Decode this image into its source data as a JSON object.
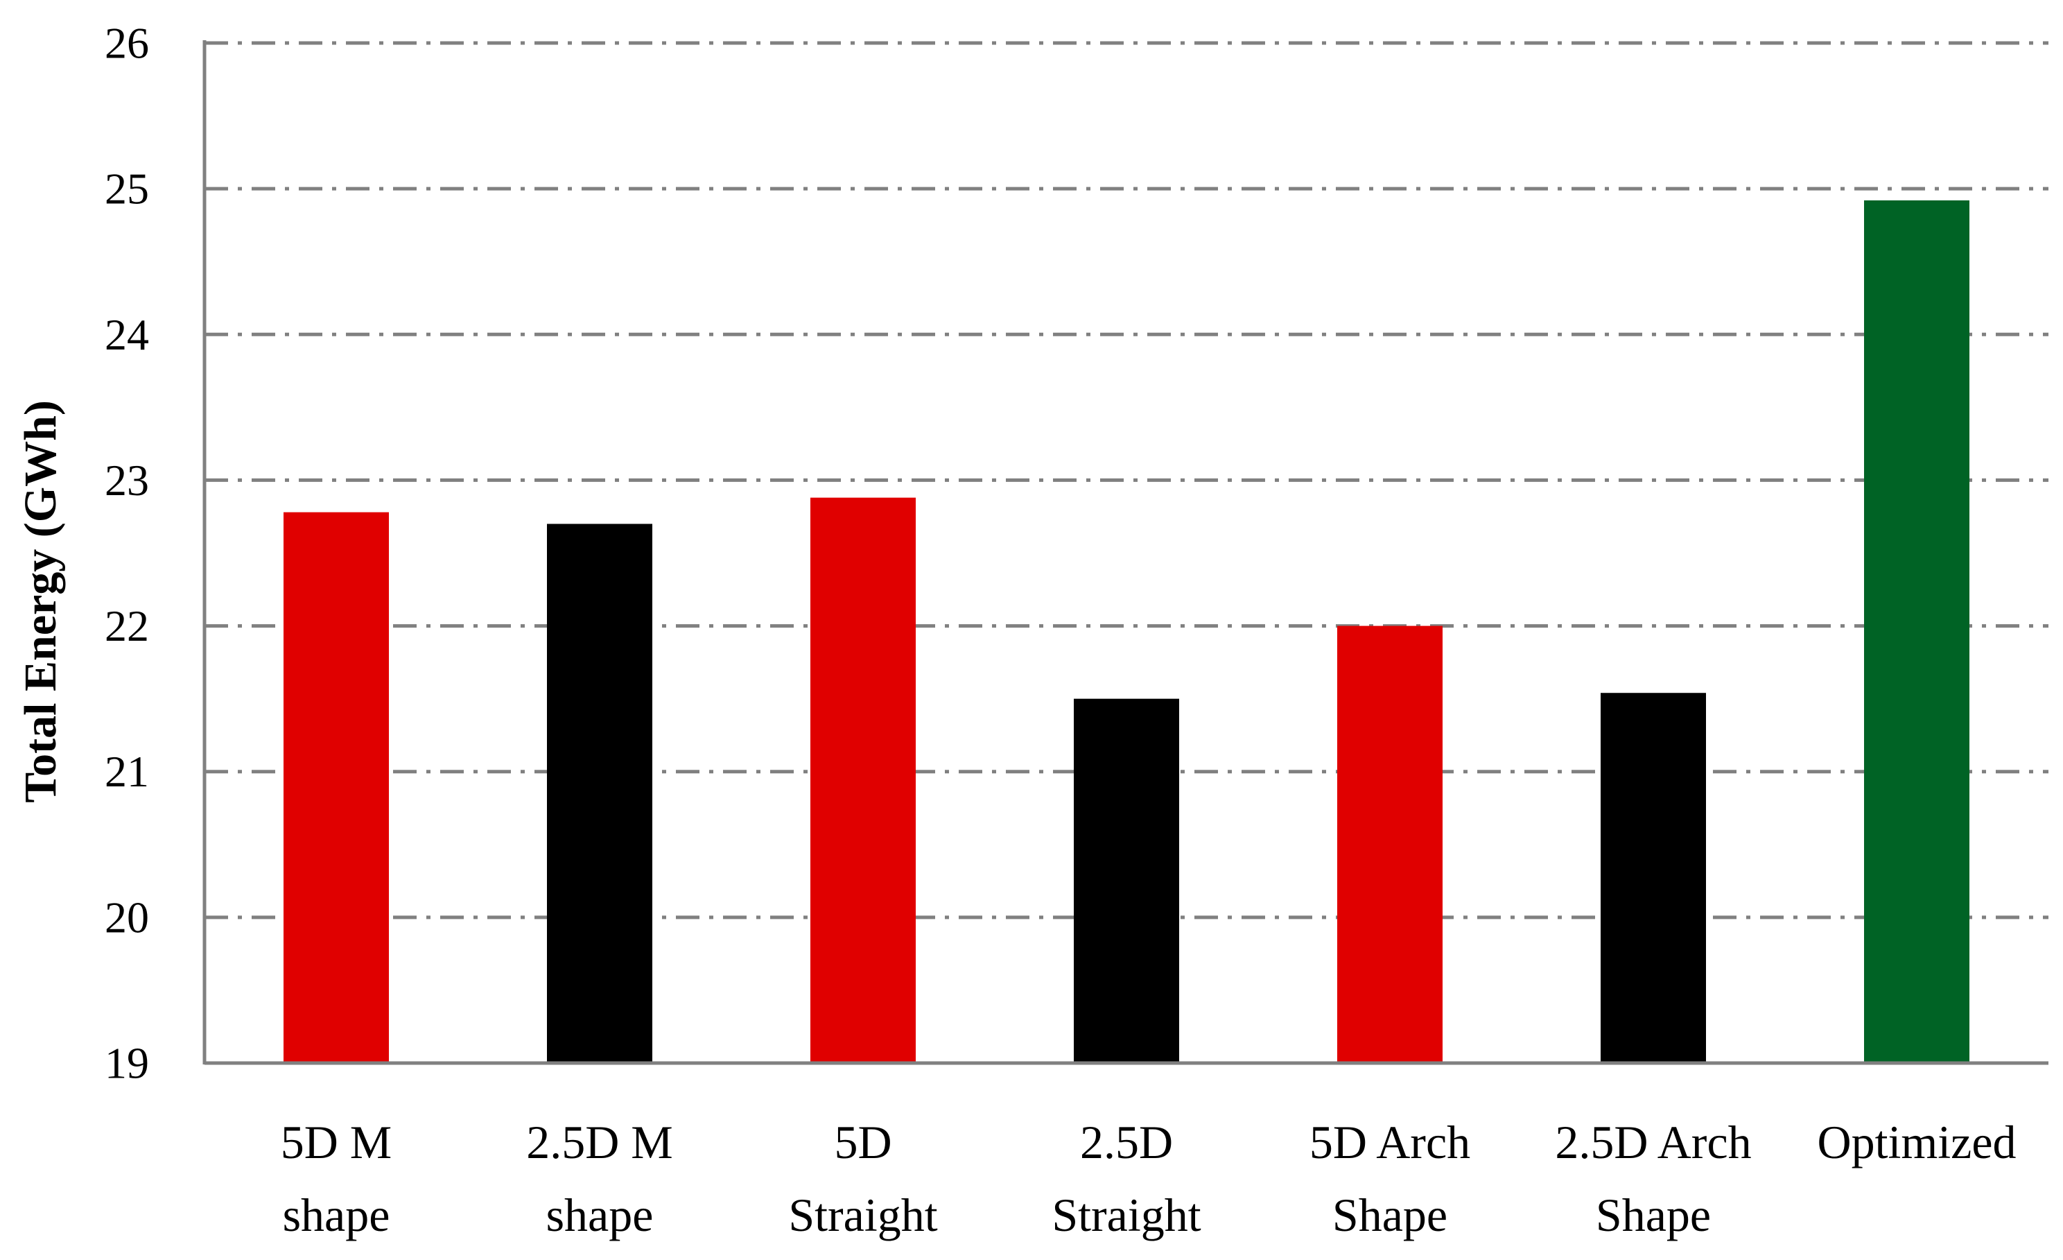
{
  "chart_data": {
    "type": "bar",
    "title": "",
    "xlabel": "",
    "ylabel": "Total Energy (GWh)",
    "ylim": [
      19,
      26
    ],
    "yticks": [
      19,
      20,
      21,
      22,
      23,
      24,
      25,
      26
    ],
    "grid": true,
    "legend": "none",
    "categories": [
      [
        "5D M",
        "shape"
      ],
      [
        "2.5D M",
        "shape"
      ],
      [
        "5D",
        "Straight"
      ],
      [
        "2.5D",
        "Straight"
      ],
      [
        "5D Arch",
        "Shape"
      ],
      [
        "2.5D Arch",
        "Shape"
      ],
      [
        "Optimized"
      ]
    ],
    "values": [
      22.78,
      22.7,
      22.88,
      21.5,
      22.0,
      21.54,
      24.92
    ],
    "bar_colors": [
      "#e00000",
      "#000000",
      "#e00000",
      "#000000",
      "#e00000",
      "#000000",
      "#006325"
    ],
    "grid_color": "#808080",
    "axis_color": "#808080"
  }
}
